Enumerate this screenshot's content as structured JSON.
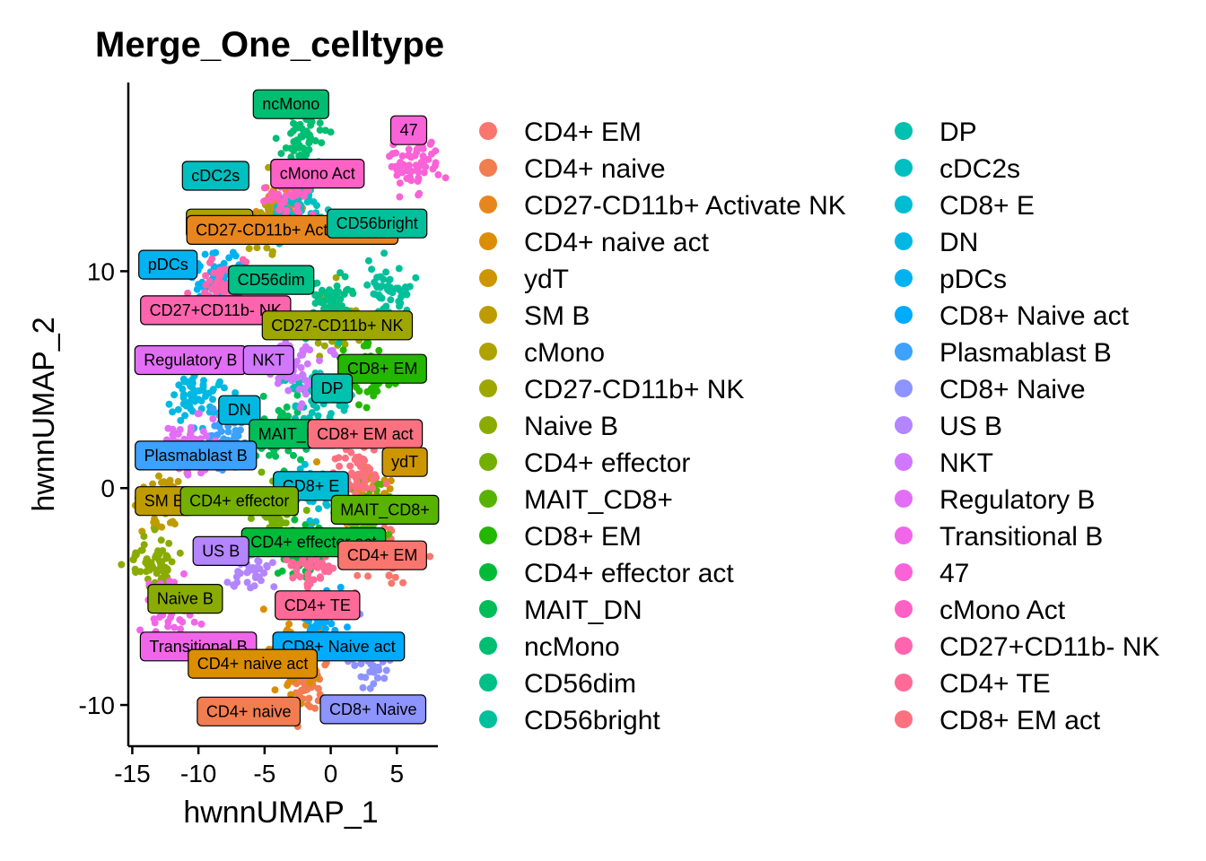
{
  "chart_data": {
    "type": "scatter",
    "title": "Merge_One_celltype",
    "xlabel": "hwnnUMAP_1",
    "ylabel": "hwnnUMAP_2",
    "xlim": [
      -15.3,
      8.1
    ],
    "ylim": [
      -11.9,
      18.7
    ],
    "x_ticks": [
      -15,
      -10,
      -5,
      0,
      5
    ],
    "x_tick_labels": [
      "-15",
      "-10",
      "-5",
      "0",
      "5"
    ],
    "y_ticks": [
      -10,
      0,
      10
    ],
    "y_tick_labels": [
      "-10",
      "0",
      "10"
    ],
    "grid": false,
    "legend_position": "right",
    "legend_columns": 2,
    "clusters": [
      {
        "name": "CD4+ EM",
        "color": "#F8766D",
        "x": 3.8,
        "y": -2.9
      },
      {
        "name": "CD4+ naive",
        "color": "#F17D51",
        "x": -2.0,
        "y": -8.8
      },
      {
        "name": "CD27-CD11b+ Activate NK",
        "color": "#E7851E",
        "x": -3.5,
        "y": 13.0
      },
      {
        "name": "CD4+ naive act",
        "color": "#DB8E00",
        "x": -2.5,
        "y": -7.9
      },
      {
        "name": "ydT",
        "color": "#CD9600",
        "x": 3.0,
        "y": -0.4
      },
      {
        "name": "SM B",
        "color": "#BE9C00",
        "x": -12.5,
        "y": -0.5
      },
      {
        "name": "cMono",
        "color": "#AEA200",
        "x": -4.5,
        "y": 12.1
      },
      {
        "name": "CD27-CD11b+ NK",
        "color": "#9DA700",
        "x": 0.4,
        "y": 7.6
      },
      {
        "name": "Naive B",
        "color": "#8AAB00",
        "x": -13.5,
        "y": -3.5
      },
      {
        "name": "CD4+ effector",
        "color": "#74AF00",
        "x": -4.0,
        "y": -1.0
      },
      {
        "name": "MAIT_CD8+",
        "color": "#58B300",
        "x": 3.2,
        "y": -1.3
      },
      {
        "name": "CD8+ EM",
        "color": "#24B700",
        "x": 3.0,
        "y": 5.3
      },
      {
        "name": "CD4+ effector act",
        "color": "#00BA38",
        "x": -2.2,
        "y": -2.8
      },
      {
        "name": "MAIT_DN",
        "color": "#00BC59",
        "x": -4.0,
        "y": 2.5
      },
      {
        "name": "ncMono",
        "color": "#00BE71",
        "x": -2.0,
        "y": 16.0
      },
      {
        "name": "CD56dim",
        "color": "#00BF87",
        "x": 0.0,
        "y": 8.5
      },
      {
        "name": "CD56bright",
        "color": "#00C09B",
        "x": 4.4,
        "y": 9.0
      },
      {
        "name": "DP",
        "color": "#00C0AF",
        "x": -1.0,
        "y": 4.2
      },
      {
        "name": "cDC2s",
        "color": "#00BFC1",
        "x": -2.6,
        "y": 12.8
      },
      {
        "name": "CD8+ E",
        "color": "#00BCD2",
        "x": -1.2,
        "y": 0.0
      },
      {
        "name": "DN",
        "color": "#00B8E2",
        "x": -10.0,
        "y": 4.2
      },
      {
        "name": "pDCs",
        "color": "#00B2F1",
        "x": -8.5,
        "y": 9.5
      },
      {
        "name": "CD8+ Naive act",
        "color": "#00ABFD",
        "x": -1.0,
        "y": -6.0
      },
      {
        "name": "Plasmablast B",
        "color": "#3DA1FF",
        "x": -8.0,
        "y": 2.3
      },
      {
        "name": "CD8+ Naive",
        "color": "#8D93FF",
        "x": 3.0,
        "y": -7.8
      },
      {
        "name": "US B",
        "color": "#B385FF",
        "x": -6.0,
        "y": -3.5
      },
      {
        "name": "NKT",
        "color": "#CF78FF",
        "x": -2.5,
        "y": 5.5
      },
      {
        "name": "Regulatory B",
        "color": "#E36EF6",
        "x": -10.5,
        "y": 2.0
      },
      {
        "name": "Transitional B",
        "color": "#F166E8",
        "x": -12.2,
        "y": -5.5
      },
      {
        "name": "47",
        "color": "#FA62D8",
        "x": 6.5,
        "y": 15.0
      },
      {
        "name": "cMono Act",
        "color": "#FF62C5",
        "x": -3.0,
        "y": 13.5
      },
      {
        "name": "CD27+CD11b- NK",
        "color": "#FF65AF",
        "x": -8.2,
        "y": 9.2
      },
      {
        "name": "CD4+ TE",
        "color": "#FF6A98",
        "x": -1.5,
        "y": -3.5
      },
      {
        "name": "CD8+ EM act",
        "color": "#FC717F",
        "x": 2.0,
        "y": 0.8
      }
    ],
    "cluster_labels": [
      {
        "text": "ncMono",
        "x": -3.0,
        "y": 17.7
      },
      {
        "text": "47",
        "x": 5.9,
        "y": 16.5
      },
      {
        "text": "cDC2s",
        "x": -8.7,
        "y": 14.4
      },
      {
        "text": "cMono Act",
        "x": -1.0,
        "y": 14.5
      },
      {
        "text": "cMono",
        "x": -8.4,
        "y": 12.2
      },
      {
        "text": "CD27-CD11b+ Activate NK",
        "x": -2.9,
        "y": 11.9
      },
      {
        "text": "CD56bright",
        "x": 3.5,
        "y": 12.2
      },
      {
        "text": "pDCs",
        "x": -12.3,
        "y": 10.3
      },
      {
        "text": "CD56dim",
        "x": -4.5,
        "y": 9.6
      },
      {
        "text": "CD27+CD11b- NK",
        "x": -8.7,
        "y": 8.2
      },
      {
        "text": "CD27-CD11b+ NK",
        "x": 0.5,
        "y": 7.5
      },
      {
        "text": "Regulatory B",
        "x": -10.6,
        "y": 5.9
      },
      {
        "text": "NKT",
        "x": -4.7,
        "y": 5.9
      },
      {
        "text": "CD8+ EM",
        "x": 3.9,
        "y": 5.5
      },
      {
        "text": "DP",
        "x": 0.1,
        "y": 4.6
      },
      {
        "text": "DN",
        "x": -6.9,
        "y": 3.6
      },
      {
        "text": "MAIT_DN",
        "x": -2.8,
        "y": 2.5
      },
      {
        "text": "CD8+ EM act",
        "x": 2.6,
        "y": 2.5
      },
      {
        "text": "ydT",
        "x": 5.6,
        "y": 1.2
      },
      {
        "text": "Plasmablast B",
        "x": -10.2,
        "y": 1.5
      },
      {
        "text": "CD8+ E",
        "x": -1.5,
        "y": 0.1
      },
      {
        "text": "SM B",
        "x": -12.6,
        "y": -0.6
      },
      {
        "text": "CD4+ effector",
        "x": -6.9,
        "y": -0.6
      },
      {
        "text": "MAIT_CD8+",
        "x": 4.1,
        "y": -1.0
      },
      {
        "text": "CD4+ effector act",
        "x": -1.3,
        "y": -2.5
      },
      {
        "text": "US B",
        "x": -8.3,
        "y": -2.9
      },
      {
        "text": "CD4+ EM",
        "x": 3.9,
        "y": -3.1
      },
      {
        "text": "Naive B",
        "x": -11.0,
        "y": -5.1
      },
      {
        "text": "CD4+ TE",
        "x": -1.0,
        "y": -5.4
      },
      {
        "text": "Transitional B",
        "x": -10.0,
        "y": -7.3
      },
      {
        "text": "CD8+ Naive act",
        "x": 0.6,
        "y": -7.3
      },
      {
        "text": "CD4+ naive act",
        "x": -5.9,
        "y": -8.1
      },
      {
        "text": "CD4+ naive",
        "x": -6.2,
        "y": -10.3
      },
      {
        "text": "CD8+ Naive",
        "x": 3.2,
        "y": -10.2
      }
    ]
  }
}
